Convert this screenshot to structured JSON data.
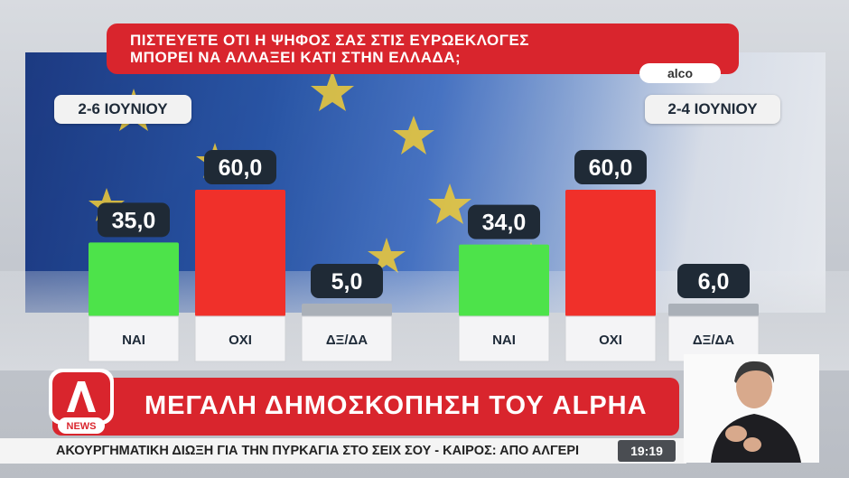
{
  "question": {
    "line1": "ΠΙΣΤΕΥΕΤΕ ΟΤΙ Η ΨΗΦΟΣ ΣΑΣ ΣΤΙΣ ΕΥΡΩΕΚΛΟΓΕΣ",
    "line2": "ΜΠΟΡΕΙ ΝΑ ΑΛΛΑΞΕΙ ΚΑΤΙ ΣΤΗΝ ΕΛΛΑΔΑ;"
  },
  "source": "alco",
  "banner": "ΜΕΓΑΛΗ ΔΗΜΟΣΚΟΠΗΣΗ ΤΟΥ ALPHA",
  "logo": {
    "letter": "A",
    "tag": "NEWS"
  },
  "ticker": "ΑΚΟΥΡΓΗΜΑΤΙΚΗ ΔΙΩΞΗ ΓΙΑ ΤΗΝ ΠΥΡΚΑΓΙΑ ΣΤΟ ΣΕΙΧ ΣΟΥ   -   ΚΑΙΡΟΣ: ΑΠΟ ΑΛΓΕΡΙ",
  "clock": "19:19",
  "colors": {
    "yes": "#4de34a",
    "no": "#f0302a",
    "dk": "#aab0b8",
    "accent": "#d9252d"
  },
  "chart_data": [
    {
      "type": "bar",
      "title": "2-6 ΙΟΥΝΙΟΥ",
      "categories": [
        "ΝΑΙ",
        "ΟΧΙ",
        "ΔΞ/ΔΑ"
      ],
      "values": [
        35.0,
        60.0,
        5.0
      ],
      "labels": [
        "35,0",
        "60,0",
        "5,0"
      ],
      "ylim": [
        0,
        60
      ]
    },
    {
      "type": "bar",
      "title": "2-4 ΙΟΥΝΙΟΥ",
      "categories": [
        "ΝΑΙ",
        "ΟΧΙ",
        "ΔΞ/ΔΑ"
      ],
      "values": [
        34.0,
        60.0,
        6.0
      ],
      "labels": [
        "34,0",
        "60,0",
        "6,0"
      ],
      "ylim": [
        0,
        60
      ]
    }
  ]
}
